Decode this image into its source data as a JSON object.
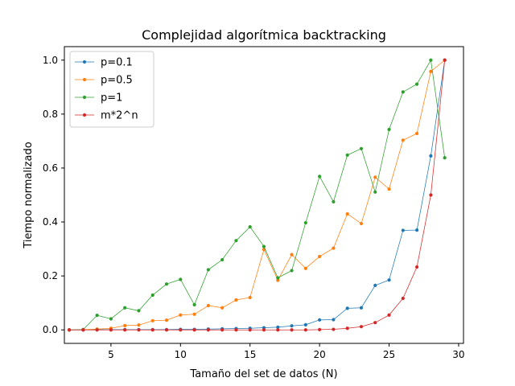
{
  "chart_data": {
    "type": "line",
    "title": "Complejidad algorítmica backtracking",
    "xlabel": "Tamaño del set de datos (N)",
    "ylabel": "Tiempo normalizado",
    "xlim": [
      1.65,
      30.35
    ],
    "ylim": [
      -0.05,
      1.05
    ],
    "xticks": [
      5,
      10,
      15,
      20,
      25,
      30
    ],
    "xtick_labels": [
      "5",
      "10",
      "15",
      "20",
      "25",
      "30"
    ],
    "yticks": [
      0.0,
      0.2,
      0.4,
      0.6,
      0.8,
      1.0
    ],
    "ytick_labels": [
      "0.0",
      "0.2",
      "0.4",
      "0.6",
      "0.8",
      "1.0"
    ],
    "grid": false,
    "legend_position": "top-left",
    "x": [
      2,
      3,
      4,
      5,
      6,
      7,
      8,
      9,
      10,
      11,
      12,
      13,
      14,
      15,
      16,
      17,
      18,
      19,
      20,
      21,
      22,
      23,
      24,
      25,
      26,
      27,
      28,
      29
    ],
    "series": [
      {
        "name": "p=0.1",
        "color": "#1f77b4",
        "values": [
          0.0,
          0.0,
          0.001,
          0.001,
          0.001,
          0.001,
          0.001,
          0.001,
          0.002,
          0.002,
          0.003,
          0.004,
          0.005,
          0.006,
          0.008,
          0.01,
          0.015,
          0.019,
          0.037,
          0.038,
          0.08,
          0.082,
          0.165,
          0.185,
          0.369,
          0.37,
          0.645,
          1.0
        ]
      },
      {
        "name": "p=0.5",
        "color": "#ff7f0e",
        "values": [
          0.0,
          0.001,
          0.003,
          0.006,
          0.016,
          0.018,
          0.034,
          0.036,
          0.055,
          0.058,
          0.09,
          0.082,
          0.111,
          0.12,
          0.298,
          0.184,
          0.279,
          0.228,
          0.272,
          0.303,
          0.43,
          0.394,
          0.566,
          0.522,
          0.703,
          0.728,
          0.958,
          1.0
        ]
      },
      {
        "name": "p=1",
        "color": "#2ca02c",
        "values": [
          0.0,
          0.001,
          0.054,
          0.041,
          0.082,
          0.071,
          0.129,
          0.17,
          0.187,
          0.093,
          0.223,
          0.26,
          0.331,
          0.382,
          0.309,
          0.193,
          0.22,
          0.397,
          0.569,
          0.475,
          0.648,
          0.672,
          0.511,
          0.743,
          0.882,
          0.911,
          1.0,
          0.638
        ]
      },
      {
        "name": "m*2^n",
        "color": "#d62728",
        "values": [
          0.0,
          0.0,
          0.0,
          0.0,
          0.0,
          0.0,
          0.0,
          0.0,
          0.0,
          0.0,
          0.0,
          0.0,
          0.0,
          0.0,
          0.0,
          0.0,
          0.0,
          0.0,
          0.001,
          0.002,
          0.006,
          0.012,
          0.027,
          0.055,
          0.117,
          0.233,
          0.5,
          1.0
        ]
      }
    ]
  }
}
